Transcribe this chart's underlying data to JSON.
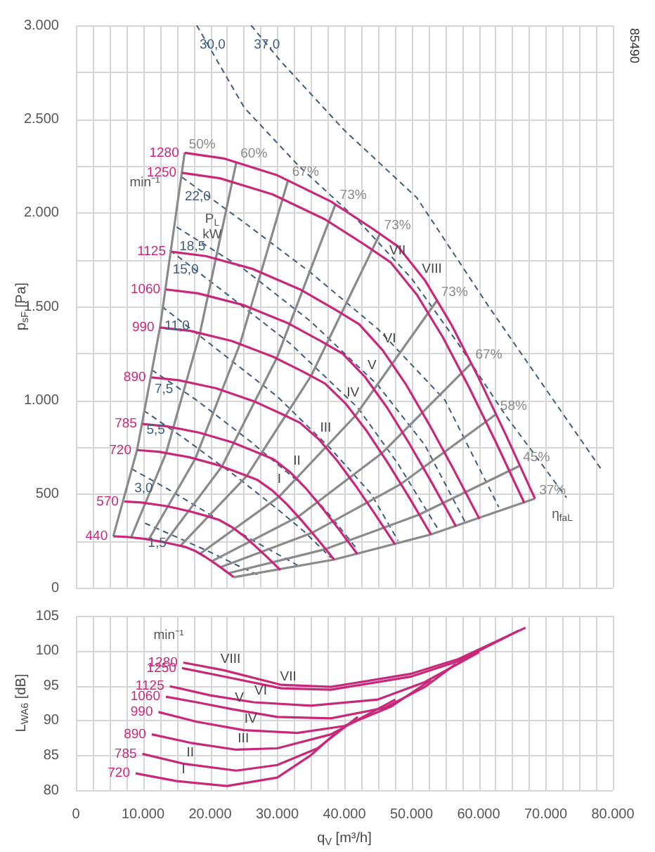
{
  "chart_data": [
    {
      "type": "line",
      "ylabel": "p$_{sF}$ [Pa]",
      "xlim": [
        0,
        80000
      ],
      "ylim": [
        0,
        3000
      ],
      "grid": true,
      "marker": "none",
      "tick_labels": "y",
      "xticks": [
        0,
        2500,
        5000,
        7500,
        10000,
        12500,
        15000,
        17500,
        20000,
        22500,
        25000,
        27500,
        30000,
        32500,
        35000,
        37500,
        40000,
        42500,
        45000,
        47500,
        50000,
        52500,
        55000,
        57500,
        60000,
        62500,
        65000,
        67500,
        70000,
        72500,
        75000,
        77500,
        80000
      ],
      "yticks": [
        0,
        {
          "value": 250,
          "label": null
        },
        500,
        {
          "value": 750,
          "label": null
        },
        {
          "value": 1000,
          "label": "1.000"
        },
        {
          "value": 1250,
          "label": null
        },
        {
          "value": 1500,
          "label": "1.500"
        },
        {
          "value": 1750,
          "label": null
        },
        {
          "value": 2000,
          "label": "2.000"
        },
        {
          "value": 2250,
          "label": null
        },
        {
          "value": 2500,
          "label": "2.500"
        },
        {
          "value": 2750,
          "label": null
        },
        {
          "value": 3000,
          "label": "3.000"
        }
      ],
      "series": [
        {
          "name": "1280",
          "color": "#c8287a",
          "x": [
            16200,
            22000,
            30000,
            38000,
            44000,
            48000,
            52000,
            56000,
            60000,
            64000,
            68400
          ],
          "values": [
            2320,
            2290,
            2200,
            2060,
            1920,
            1820,
            1640,
            1400,
            1120,
            820,
            475
          ]
        },
        {
          "name": "1250",
          "color": "#c8287a",
          "x": [
            15820,
            21480,
            29300,
            37110,
            42970,
            46880,
            50780,
            54690,
            58590,
            62500,
            66800
          ],
          "values": [
            2213,
            2184,
            2098,
            1965,
            1831,
            1736,
            1564,
            1335,
            1068,
            782,
            453
          ]
        },
        {
          "name": "1125",
          "color": "#c8287a",
          "x": [
            14240,
            19340,
            26370,
            33400,
            38670,
            42190,
            45700,
            49220,
            52730,
            56250,
            60120
          ],
          "values": [
            1792,
            1769,
            1700,
            1591,
            1483,
            1406,
            1267,
            1082,
            865,
            633,
            367
          ]
        },
        {
          "name": "1060",
          "color": "#c8287a",
          "x": [
            13420,
            18220,
            24840,
            31470,
            36440,
            39750,
            43060,
            46380,
            49690,
            53000,
            56640
          ],
          "values": [
            1591,
            1570,
            1509,
            1413,
            1317,
            1248,
            1125,
            960,
            768,
            562,
            326
          ]
        },
        {
          "name": "990",
          "color": "#c8287a",
          "x": [
            12530,
            17020,
            23200,
            29390,
            34030,
            37120,
            40220,
            43310,
            46400,
            49500,
            52900
          ],
          "values": [
            1388,
            1370,
            1316,
            1232,
            1149,
            1089,
            981,
            837,
            670,
            491,
            284
          ]
        },
        {
          "name": "890",
          "color": "#c8287a",
          "x": [
            11260,
            15300,
            20860,
            26420,
            30590,
            33380,
            36160,
            38940,
            41720,
            44500,
            47560
          ],
          "values": [
            1122,
            1107,
            1064,
            996,
            928,
            880,
            793,
            677,
            542,
            396,
            230
          ]
        },
        {
          "name": "785",
          "color": "#c8287a",
          "x": [
            9930,
            13490,
            18400,
            23300,
            26980,
            29440,
            31890,
            34340,
            36800,
            39250,
            41950
          ],
          "values": [
            873,
            861,
            827,
            775,
            722,
            685,
            617,
            527,
            421,
            308,
            179
          ]
        },
        {
          "name": "720",
          "color": "#c8287a",
          "x": [
            9110,
            12380,
            16880,
            21380,
            24750,
            27000,
            29250,
            31500,
            33750,
            36000,
            38480
          ],
          "values": [
            734,
            725,
            696,
            652,
            607,
            576,
            519,
            443,
            354,
            259,
            150
          ]
        },
        {
          "name": "570",
          "color": "#c8287a",
          "x": [
            7210,
            9800,
            13360,
            16920,
            19590,
            21370,
            23160,
            24940,
            26720,
            28500,
            30460
          ],
          "values": [
            460,
            454,
            436,
            408,
            381,
            361,
            325,
            278,
            222,
            163,
            94
          ]
        },
        {
          "name": "440",
          "color": "#c8287a",
          "x": [
            5570,
            7560,
            10310,
            13060,
            15120,
            16500,
            17880,
            19250,
            20630,
            22000,
            23520
          ],
          "values": [
            274,
            271,
            260,
            243,
            227,
            215,
            194,
            165,
            132,
            97,
            56
          ]
        },
        {
          "name": "50%",
          "color": "#8a8a8a",
          "x": [
            5570,
            9110,
            12530,
            16200
          ],
          "values": [
            274,
            734,
            1388,
            2320
          ]
        },
        {
          "name": "60%",
          "color": "#8a8a8a",
          "x": [
            8220,
            13440,
            18480,
            23900
          ],
          "values": [
            268,
            718,
            1357,
            2269
          ]
        },
        {
          "name": "67%",
          "color": "#8a8a8a",
          "x": [
            10860,
            17780,
            24440,
            31600
          ],
          "values": [
            257,
            687,
            1299,
            2172
          ]
        },
        {
          "name": "73%",
          "color": "#8a8a8a",
          "x": [
            13300,
            21770,
            29930,
            38700
          ],
          "values": [
            242,
            648,
            1225,
            2048
          ]
        },
        {
          "name": "73%",
          "color": "#8a8a8a",
          "x": [
            15570,
            25480,
            35030,
            45300
          ],
          "values": [
            223,
            597,
            1129,
            1888
          ]
        },
        {
          "name": "73%",
          "color": "#8a8a8a",
          "x": [
            18500,
            30260,
            41610,
            53800
          ],
          "values": [
            181,
            485,
            916,
            1532
          ]
        },
        {
          "name": "67%",
          "color": "#8a8a8a",
          "x": [
            20250,
            33130,
            45550,
            58900
          ],
          "values": [
            141,
            379,
            716,
            1197
          ]
        },
        {
          "name": "58%",
          "color": "#8a8a8a",
          "x": [
            21520,
            35210,
            48410,
            62600
          ],
          "values": [
            109,
            293,
            553,
            925
          ]
        },
        {
          "name": "45%",
          "color": "#8a8a8a",
          "x": [
            22690,
            37130,
            51040,
            66000
          ],
          "values": [
            77,
            205,
            388,
            648
          ]
        },
        {
          "name": "37%",
          "color": "#8a8a8a",
          "x": [
            23520,
            38480,
            52900,
            68400
          ],
          "values": [
            56,
            150,
            284,
            475
          ]
        },
        {
          "name": "37,0",
          "color": "#3d5c7e",
          "line_style": "dashed",
          "x": [
            26100,
            30600,
            40000,
            50800,
            61500,
            70000,
            78500
          ],
          "values": [
            3000,
            2805,
            2440,
            2080,
            1500,
            1060,
            620
          ]
        },
        {
          "name": "30,0",
          "color": "#3d5c7e",
          "line_style": "dashed",
          "x": [
            18000,
            25100,
            33200,
            42000,
            50000,
            57000,
            64000,
            73100
          ],
          "values": [
            3000,
            2560,
            2250,
            1960,
            1650,
            1300,
            920,
            480
          ]
        },
        {
          "name": "22,0",
          "color": "#3d5c7e",
          "line_style": "dashed",
          "x": [
            15800,
            25000,
            35000,
            45000,
            55000,
            63000
          ],
          "values": [
            2190,
            1950,
            1680,
            1380,
            1000,
            430
          ]
        },
        {
          "name": "18,5",
          "color": "#3d5c7e",
          "line_style": "dashed",
          "x": [
            15000,
            25000,
            35000,
            45000,
            52000,
            58000
          ],
          "values": [
            1924,
            1700,
            1420,
            1080,
            760,
            350
          ]
        },
        {
          "name": "15,0",
          "color": "#3d5c7e",
          "line_style": "dashed",
          "x": [
            14000,
            22000,
            32000,
            42000,
            48000,
            54000
          ],
          "values": [
            1800,
            1580,
            1300,
            960,
            660,
            310
          ]
        },
        {
          "name": "11,0",
          "color": "#3d5c7e",
          "line_style": "dashed",
          "x": [
            12800,
            20000,
            30000,
            38000,
            44000,
            48000
          ],
          "values": [
            1500,
            1300,
            1020,
            740,
            500,
            250
          ]
        },
        {
          "name": "7,5",
          "color": "#3d5c7e",
          "line_style": "dashed",
          "x": [
            11300,
            18000,
            26000,
            34000,
            38000,
            42000
          ],
          "values": [
            1162,
            1000,
            780,
            540,
            380,
            200
          ]
        },
        {
          "name": "5,5",
          "color": "#3d5c7e",
          "line_style": "dashed",
          "x": [
            10100,
            16000,
            24000,
            30000,
            34000,
            38000
          ],
          "values": [
            945,
            800,
            590,
            420,
            300,
            160
          ]
        },
        {
          "name": "3,0",
          "color": "#3d5c7e",
          "line_style": "dashed",
          "x": [
            8300,
            14000,
            20000,
            26000,
            30000,
            33000
          ],
          "values": [
            634,
            520,
            390,
            260,
            180,
            120
          ]
        },
        {
          "name": "1,5",
          "color": "#3d5c7e",
          "line_style": "dashed",
          "x": [
            10300,
            15000,
            20000,
            24000,
            27000
          ],
          "values": [
            344,
            270,
            190,
            120,
            70
          ]
        }
      ],
      "annotations": [
        "min⁻¹",
        "P$_{L}$",
        "kW",
        "η$_{faL}$",
        "85490",
        {
          "text": "I",
          "x": 29250,
          "y": 519
        },
        {
          "text": "II",
          "x": 31890,
          "y": 617
        },
        {
          "text": "III",
          "x": 36160,
          "y": 793
        },
        {
          "text": "IV",
          "x": 40220,
          "y": 981
        },
        {
          "text": "V",
          "x": 43060,
          "y": 1125
        },
        {
          "text": "VI",
          "x": 45700,
          "y": 1267
        },
        {
          "text": "VII",
          "x": 46880,
          "y": 1736
        },
        {
          "text": "VIII",
          "x": 52000,
          "y": 1640
        }
      ]
    },
    {
      "type": "line",
      "xlabel": "q$_{V}$ [m³/h]",
      "ylabel": "L$_{WA6}$ [dB]",
      "xlim": [
        0,
        80000
      ],
      "ylim": [
        80,
        105
      ],
      "grid": true,
      "marker": "none",
      "xticks": [
        0,
        {
          "value": 2500,
          "label": null
        },
        {
          "value": 5000,
          "label": null
        },
        {
          "value": 7500,
          "label": null
        },
        {
          "value": 10000,
          "label": "10.000"
        },
        {
          "value": 12500,
          "label": null
        },
        {
          "value": 15000,
          "label": null
        },
        {
          "value": 17500,
          "label": null
        },
        {
          "value": 20000,
          "label": "20.000"
        },
        {
          "value": 22500,
          "label": null
        },
        {
          "value": 25000,
          "label": null
        },
        {
          "value": 27500,
          "label": null
        },
        {
          "value": 30000,
          "label": "30.000"
        },
        {
          "value": 32500,
          "label": null
        },
        {
          "value": 35000,
          "label": null
        },
        {
          "value": 37500,
          "label": null
        },
        {
          "value": 40000,
          "label": "40.000"
        },
        {
          "value": 42500,
          "label": null
        },
        {
          "value": 45000,
          "label": null
        },
        {
          "value": 47500,
          "label": null
        },
        {
          "value": 50000,
          "label": "50.000"
        },
        {
          "value": 52500,
          "label": null
        },
        {
          "value": 55000,
          "label": null
        },
        {
          "value": 57500,
          "label": null
        },
        {
          "value": 60000,
          "label": "60.000"
        },
        {
          "value": 62500,
          "label": null
        },
        {
          "value": 65000,
          "label": null
        },
        {
          "value": 67500,
          "label": null
        },
        {
          "value": 70000,
          "label": "70.000"
        },
        {
          "value": 72500,
          "label": null
        },
        {
          "value": 75000,
          "label": null
        },
        {
          "value": 77500,
          "label": null
        },
        {
          "value": 80000,
          "label": "80.000"
        }
      ],
      "yticks": [
        80,
        85,
        90,
        95,
        100,
        105
      ],
      "series": [
        {
          "name": "1280",
          "color": "#c8287a",
          "x": [
            16000,
            22000,
            30600,
            38000,
            50000,
            57000,
            67000
          ],
          "values": [
            98.3,
            97.2,
            95.1,
            94.8,
            96.7,
            98.8,
            103.3
          ]
        },
        {
          "name": "1250",
          "color": "#c8287a",
          "x": [
            15800,
            22000,
            30600,
            38000,
            50000,
            57000,
            66000
          ],
          "values": [
            97.5,
            96.3,
            94.6,
            94.4,
            96.3,
            98.5,
            102.9
          ]
        },
        {
          "name": "1125",
          "color": "#c8287a",
          "x": [
            14000,
            20000,
            26500,
            35000,
            45000,
            52000,
            60100
          ],
          "values": [
            94.9,
            93.6,
            92.6,
            92.1,
            93,
            95.5,
            99.8
          ]
        },
        {
          "name": "1060",
          "color": "#c8287a",
          "x": [
            13400,
            18000,
            23300,
            30000,
            38000,
            46000,
            52000,
            56600
          ],
          "values": [
            93.4,
            92.6,
            91.6,
            90.5,
            90.3,
            91.8,
            94.8,
            98.1
          ]
        },
        {
          "name": "990",
          "color": "#c8287a",
          "x": [
            12300,
            18000,
            25000,
            33000,
            40000,
            47000,
            52900
          ],
          "values": [
            91.2,
            89.8,
            88.6,
            88.2,
            89.2,
            92,
            95.8
          ]
        },
        {
          "name": "890",
          "color": "#c8287a",
          "x": [
            11300,
            17000,
            23900,
            30000,
            38000,
            47600
          ],
          "values": [
            88,
            86.8,
            85.8,
            86,
            88,
            93
          ]
        },
        {
          "name": "785",
          "color": "#c8287a",
          "x": [
            9900,
            16000,
            23900,
            30000,
            36000,
            42000
          ],
          "values": [
            85.2,
            83.8,
            82.8,
            83.6,
            86,
            90.5
          ]
        },
        {
          "name": "720",
          "color": "#c8287a",
          "x": [
            8900,
            15000,
            22500,
            30000,
            35000,
            38500
          ],
          "values": [
            82.4,
            81.3,
            80.6,
            81.8,
            85,
            88
          ]
        }
      ],
      "annotations": [
        "min⁻¹",
        {
          "text": "I",
          "x": 15000,
          "y": 81.3
        },
        {
          "text": "II",
          "x": 16000,
          "y": 83.8
        },
        {
          "text": "III",
          "x": 23900,
          "y": 85.8
        },
        {
          "text": "IV",
          "x": 25000,
          "y": 88.6
        },
        {
          "text": "V",
          "x": 23300,
          "y": 91.6
        },
        {
          "text": "VI",
          "x": 26500,
          "y": 92.6
        },
        {
          "text": "VII",
          "x": 30600,
          "y": 94.6
        },
        {
          "text": "VIII",
          "x": 22000,
          "y": 97.2
        }
      ]
    }
  ]
}
